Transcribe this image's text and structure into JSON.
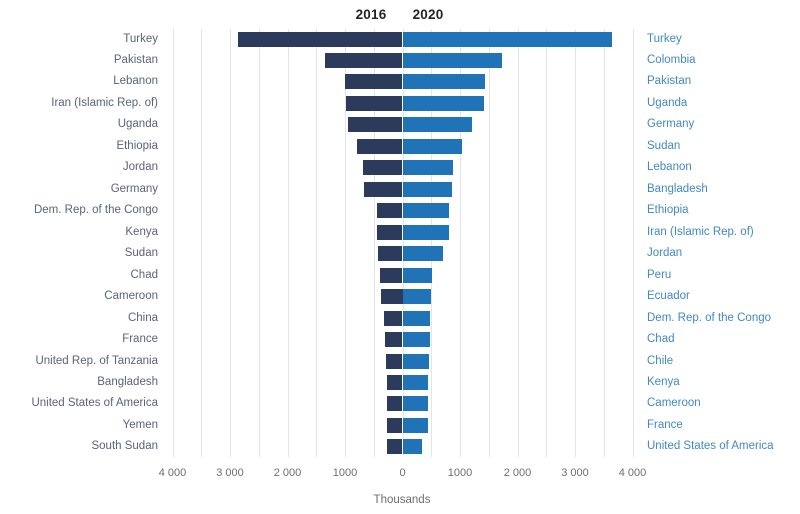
{
  "header": {
    "left_year": "2016",
    "right_year": "2020"
  },
  "axis": {
    "ticks": [
      {
        "label": "4 000",
        "value": -4000
      },
      {
        "label": "3 000",
        "value": -3000
      },
      {
        "label": "2 000",
        "value": -2000
      },
      {
        "label": "1000",
        "value": -1000
      },
      {
        "label": "0",
        "value": 0
      },
      {
        "label": "1000",
        "value": 1000
      },
      {
        "label": "2 000",
        "value": 2000
      },
      {
        "label": "3 000",
        "value": 3000
      },
      {
        "label": "4 000",
        "value": 4000
      }
    ],
    "unit_label": "Thousands"
  },
  "colors": {
    "bar_2016": "#2c3a5c",
    "bar_2020": "#2173b7",
    "left_label_text": "#5a6379",
    "right_label_text": "#4288c5",
    "axis_text": "#6e6e71",
    "gridline": "#e4e4e8",
    "title_text": "#242424"
  },
  "chart_data": {
    "type": "bar",
    "variant": "diverging-horizontal-tornado",
    "title": "",
    "xlabel": "Thousands",
    "unit": "thousands",
    "xlim": [
      -4500,
      4500
    ],
    "grid_interval": 500,
    "tick_interval": 1000,
    "grid": true,
    "legend_position": "top-center",
    "series": [
      {
        "name": "2016",
        "side": "left",
        "color": "#2c3a5c",
        "categories": [
          "Turkey",
          "Pakistan",
          "Lebanon",
          "Iran (Islamic Rep. of)",
          "Uganda",
          "Ethiopia",
          "Jordan",
          "Germany",
          "Dem. Rep. of the Congo",
          "Kenya",
          "Sudan",
          "Chad",
          "Cameroon",
          "China",
          "France",
          "United Rep. of Tanzania",
          "Bangladesh",
          "United States of America",
          "Yemen",
          "South Sudan"
        ],
        "values": [
          2869,
          1353,
          1005,
          979,
          941,
          792,
          685,
          670,
          452,
          451,
          422,
          391,
          375,
          317,
          304,
          282,
          276,
          273,
          270,
          263
        ]
      },
      {
        "name": "2020",
        "side": "right",
        "color": "#2173b7",
        "categories": [
          "Turkey",
          "Colombia",
          "Pakistan",
          "Uganda",
          "Germany",
          "Sudan",
          "Lebanon",
          "Bangladesh",
          "Ethiopia",
          "Iran (Islamic Rep. of)",
          "Jordan",
          "Peru",
          "Ecuador",
          "Dem. Rep. of the Congo",
          "Chad",
          "Chile",
          "Kenya",
          "Cameroon",
          "France",
          "United States of America"
        ],
        "values": [
          3652,
          1730,
          1438,
          1421,
          1211,
          1040,
          870,
          867,
          800,
          800,
          703,
          514,
          504,
          478,
          470,
          455,
          447,
          440,
          436,
          340
        ]
      }
    ]
  }
}
